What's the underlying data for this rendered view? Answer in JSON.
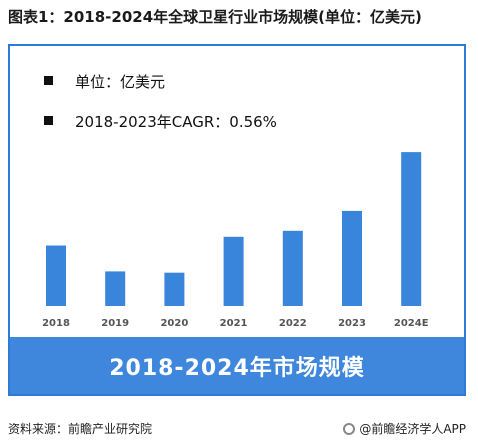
{
  "figure_title": "图表1：2018-2024年全球卫星行业市场规模(单位：亿美元)",
  "legend": {
    "unit_label": "单位：亿美元",
    "cagr_label": "2018-2023年CAGR：0.56%"
  },
  "chart_data": {
    "type": "bar",
    "title": "2018-2024年市场规模",
    "categories": [
      "2018",
      "2019",
      "2020",
      "2021",
      "2022",
      "2023",
      "2024E"
    ],
    "values": [
      2770,
      2710,
      2707,
      2790,
      2804,
      2850,
      2986
    ],
    "ylim": [
      2630,
      3000
    ],
    "bar_color": "#3a85dc",
    "grid": false
  },
  "footer": {
    "source": "资料来源：前瞻产业研究院",
    "brand": "@前瞻经济学人APP"
  },
  "colors": {
    "accent": "#2f7ad7",
    "banner": "#3f87dc"
  },
  "icons": {
    "brand": "brand-logo-icon"
  }
}
